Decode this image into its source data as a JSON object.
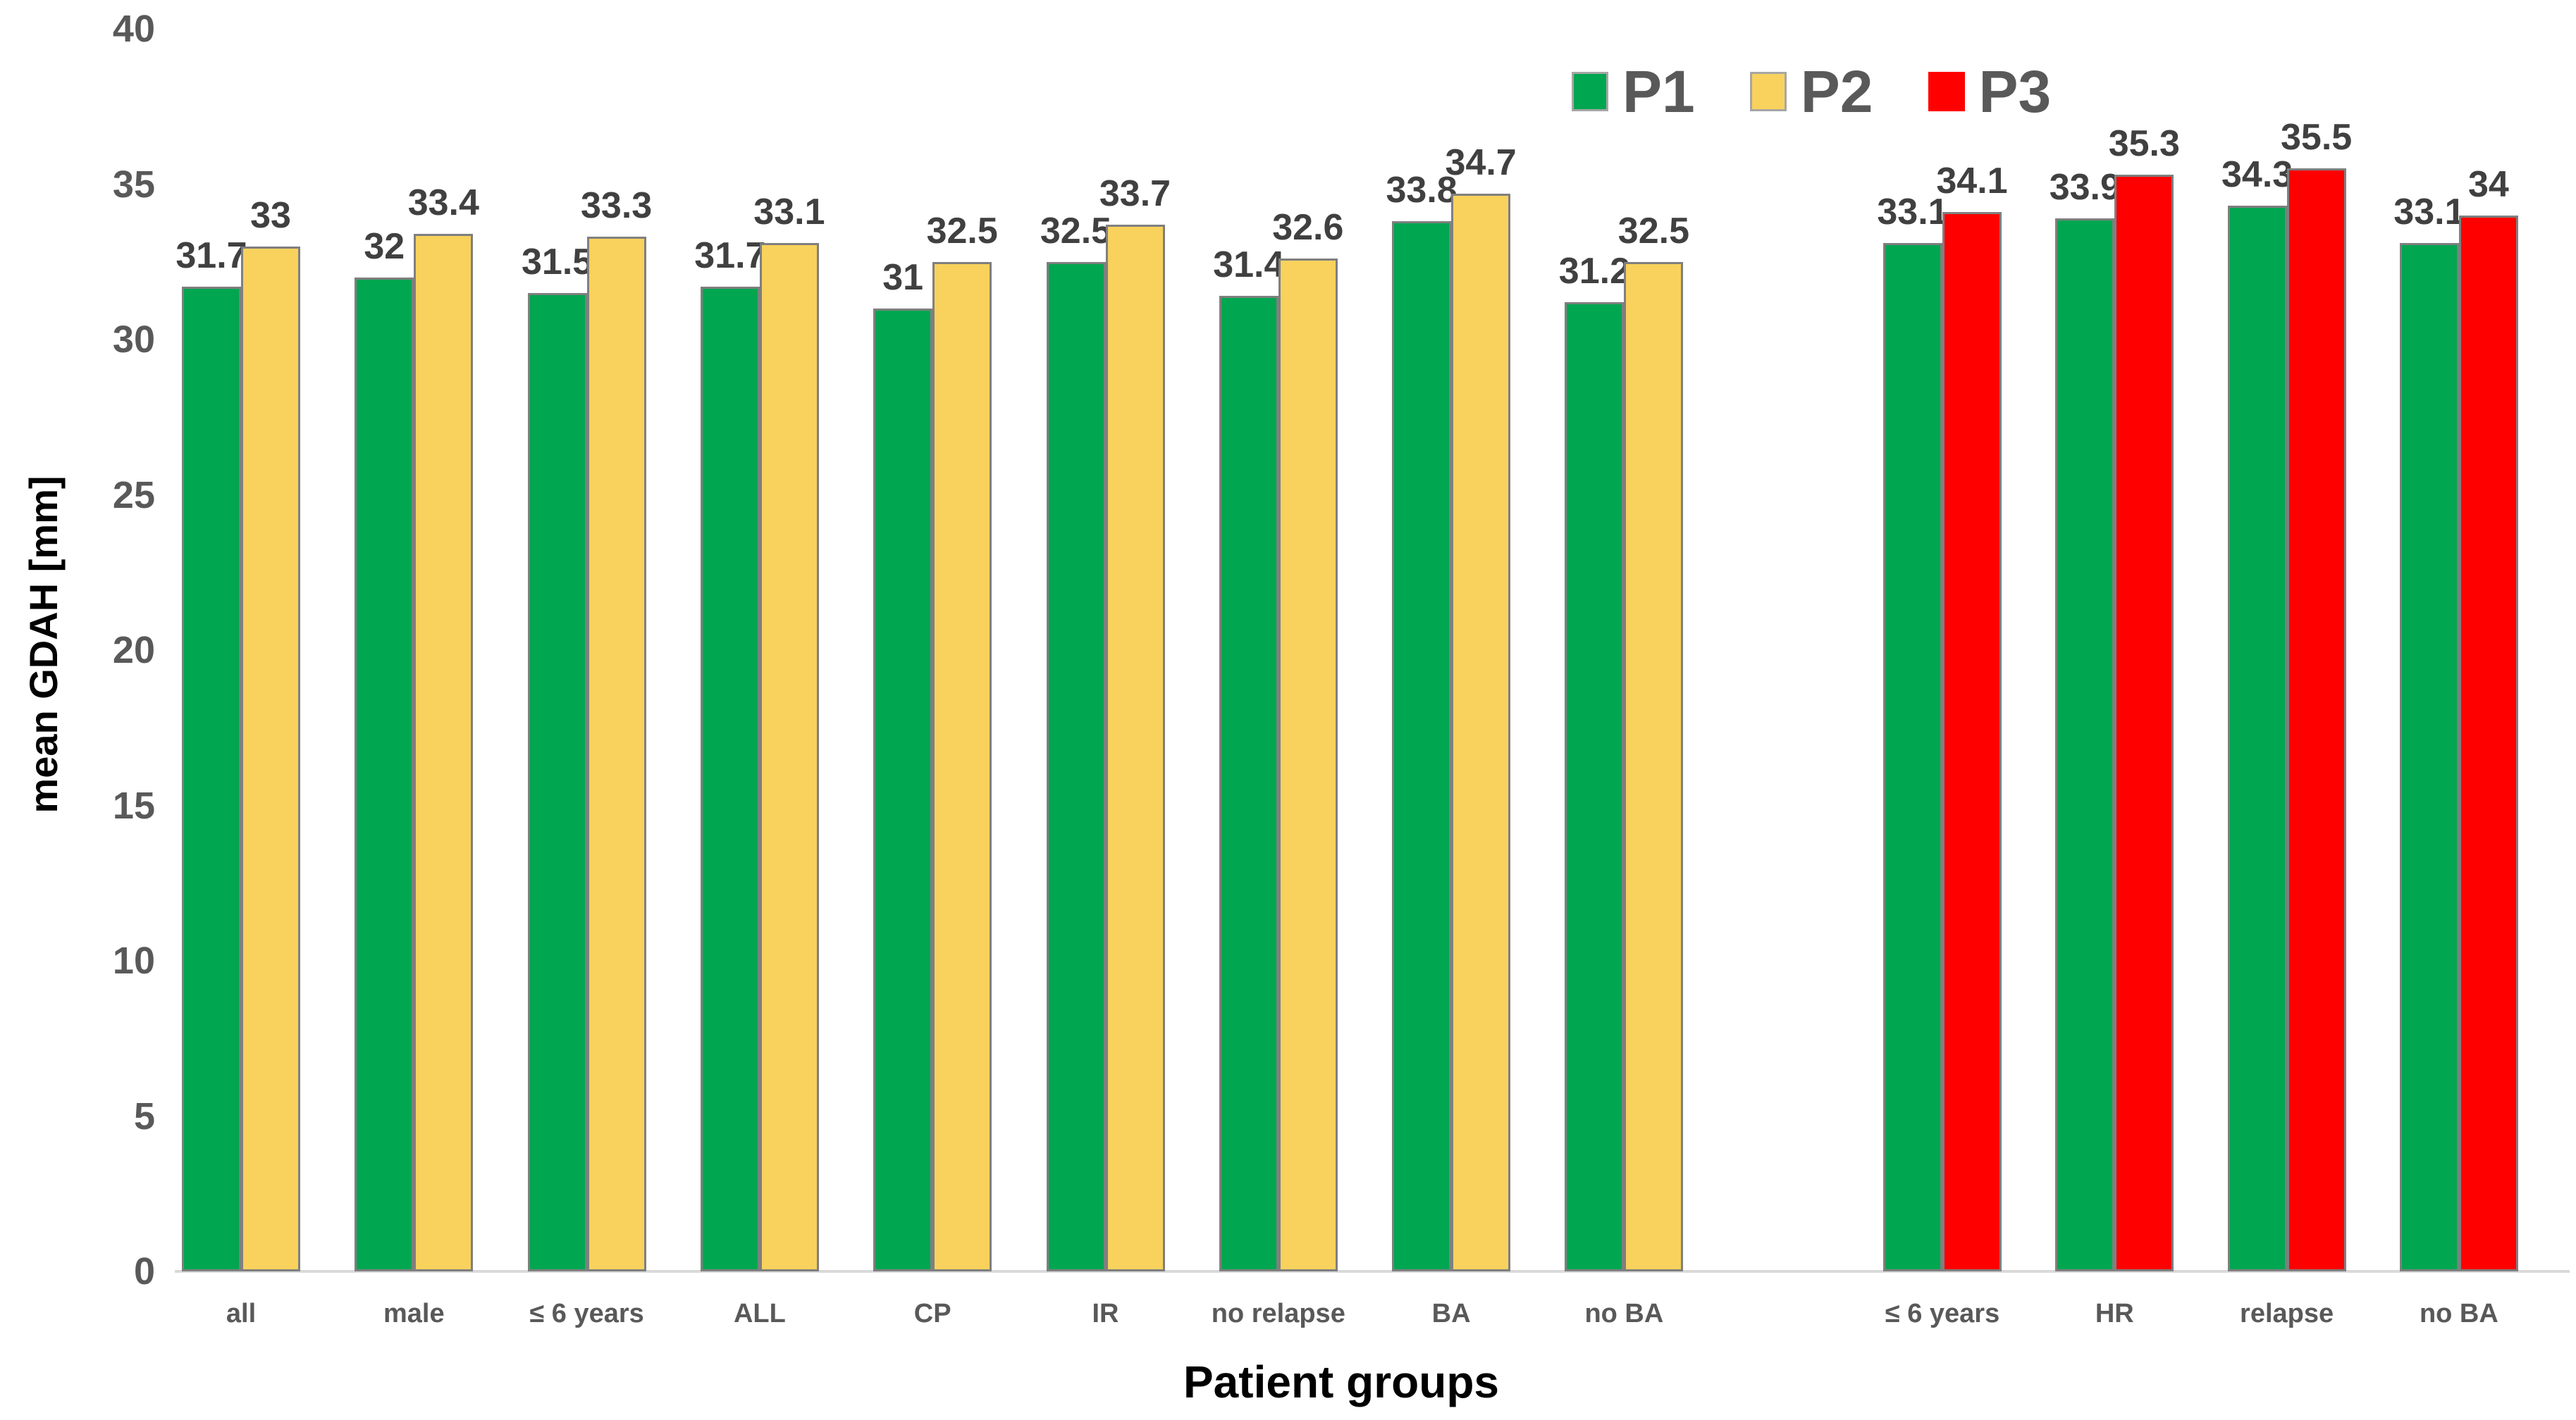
{
  "chart_data": {
    "type": "bar",
    "title": "",
    "xlabel": "Patient groups",
    "ylabel": "mean GDAH [mm]",
    "ylim": [
      0,
      40
    ],
    "yticks": [
      0,
      5,
      10,
      15,
      20,
      25,
      30,
      35,
      40
    ],
    "grid": false,
    "legend_position": "top-center",
    "colors": {
      "P1": "#00A650",
      "P2": "#F8D25C",
      "P3": "#FF0000",
      "bar_border": "#7F7F7F",
      "baseline": "#D9D9D9",
      "tick_text": "#595959",
      "value_text": "#404040",
      "category_text": "#595959",
      "axis_title_text": "#000000",
      "legend_text": "#595959"
    },
    "legend": [
      {
        "name": "P1",
        "color": "#00A650",
        "bordered": true
      },
      {
        "name": "P2",
        "color": "#F8D25C",
        "bordered": true
      },
      {
        "name": "P3",
        "color": "#FF0000",
        "bordered": false
      }
    ],
    "groups": [
      {
        "categories": [
          "all",
          "male",
          "≤ 6 years",
          "ALL",
          "CP",
          "IR",
          "no relapse",
          "BA",
          "no BA"
        ],
        "series": [
          {
            "name": "P1",
            "values": [
              31.7,
              32,
              31.5,
              31.7,
              31,
              32.5,
              31.4,
              33.8,
              31.2
            ]
          },
          {
            "name": "P2",
            "values": [
              33,
              33.4,
              33.3,
              33.1,
              32.5,
              33.7,
              32.6,
              34.7,
              32.5
            ]
          }
        ]
      },
      {
        "categories": [
          "≤ 6 years",
          "HR",
          "relapse",
          "no BA"
        ],
        "series": [
          {
            "name": "P1",
            "values": [
              33.1,
              33.9,
              34.3,
              33.1
            ]
          },
          {
            "name": "P3",
            "values": [
              34.1,
              35.3,
              35.5,
              34
            ]
          }
        ]
      }
    ]
  }
}
